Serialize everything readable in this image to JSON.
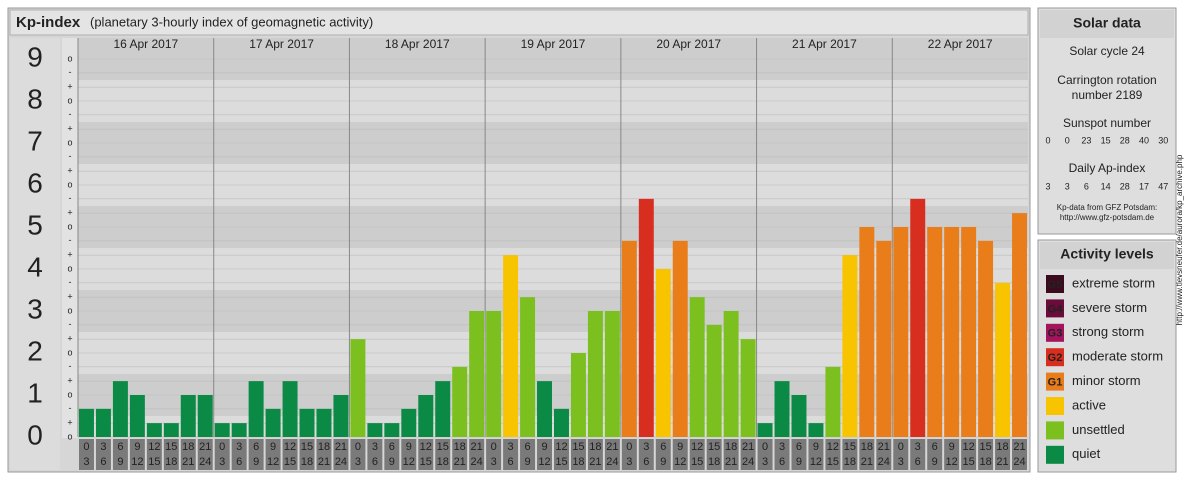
{
  "title": "Kp-index",
  "subtitle": "(planetary 3-hourly index of geomagnetic activity)",
  "chart_data": {
    "type": "bar",
    "days": [
      "16 Apr 2017",
      "17 Apr 2017",
      "18 Apr 2017",
      "19 Apr 2017",
      "20 Apr 2017",
      "21 Apr 2017",
      "22 Apr 2017"
    ],
    "intervals": [
      [
        "0",
        "3"
      ],
      [
        "3",
        "6"
      ],
      [
        "6",
        "9"
      ],
      [
        "9",
        "12"
      ],
      [
        "12",
        "15"
      ],
      [
        "15",
        "18"
      ],
      [
        "18",
        "21"
      ],
      [
        "21",
        "24"
      ]
    ],
    "values": [
      0.67,
      0.67,
      1.33,
      1,
      0.33,
      0.33,
      1,
      1,
      0.33,
      0.33,
      1.33,
      0.67,
      1.33,
      0.67,
      0.67,
      1,
      2.33,
      0.33,
      0.33,
      0.67,
      1,
      1.33,
      1.67,
      3,
      3,
      4.33,
      3.33,
      1.33,
      0.67,
      2,
      3,
      3,
      4.67,
      5.67,
      4,
      4.67,
      3.33,
      2.67,
      3,
      2.33,
      0.33,
      1.33,
      1,
      0.33,
      1.67,
      4.33,
      5,
      4.67,
      5,
      5.67,
      5,
      5,
      5,
      4.67,
      3.67,
      5.33
    ],
    "colors": [
      "#0a8a44",
      "#0a8a44",
      "#0a8a44",
      "#0a8a44",
      "#0a8a44",
      "#0a8a44",
      "#0a8a44",
      "#0a8a44",
      "#0a8a44",
      "#0a8a44",
      "#0a8a44",
      "#0a8a44",
      "#0a8a44",
      "#0a8a44",
      "#0a8a44",
      "#0a8a44",
      "#7cc020",
      "#0a8a44",
      "#0a8a44",
      "#0a8a44",
      "#0a8a44",
      "#0a8a44",
      "#7cc020",
      "#7cc020",
      "#7cc020",
      "#f8c400",
      "#7cc020",
      "#0a8a44",
      "#0a8a44",
      "#7cc020",
      "#7cc020",
      "#7cc020",
      "#e87d1a",
      "#d82e20",
      "#f8c400",
      "#e87d1a",
      "#7cc020",
      "#7cc020",
      "#7cc020",
      "#7cc020",
      "#0a8a44",
      "#0a8a44",
      "#0a8a44",
      "#0a8a44",
      "#7cc020",
      "#f8c400",
      "#e87d1a",
      "#e87d1a",
      "#e87d1a",
      "#d82e20",
      "#e87d1a",
      "#e87d1a",
      "#e87d1a",
      "#e87d1a",
      "#f8c400",
      "#e87d1a"
    ],
    "ylim": [
      0,
      9.5
    ],
    "yticks": [
      0,
      1,
      2,
      3,
      4,
      5,
      6,
      7,
      8,
      9
    ],
    "minor_ticks": [
      {
        "value": 0,
        "label": "o"
      },
      {
        "value": 0.33,
        "label": "+"
      },
      {
        "value": 0.67,
        "label": "-"
      },
      {
        "value": 1,
        "label": "o"
      },
      {
        "value": 1.33,
        "label": "+"
      },
      {
        "value": 1.67,
        "label": "-"
      },
      {
        "value": 2,
        "label": "o"
      },
      {
        "value": 2.33,
        "label": "+"
      },
      {
        "value": 2.67,
        "label": "-"
      },
      {
        "value": 3,
        "label": "o"
      },
      {
        "value": 3.33,
        "label": "+"
      },
      {
        "value": 3.67,
        "label": "-"
      },
      {
        "value": 4,
        "label": "o"
      },
      {
        "value": 4.33,
        "label": "+"
      },
      {
        "value": 4.67,
        "label": "-"
      },
      {
        "value": 5,
        "label": "o"
      },
      {
        "value": 5.33,
        "label": "+"
      },
      {
        "value": 5.67,
        "label": "-"
      },
      {
        "value": 6,
        "label": "o"
      },
      {
        "value": 6.33,
        "label": "+"
      },
      {
        "value": 6.67,
        "label": "-"
      },
      {
        "value": 7,
        "label": "o"
      },
      {
        "value": 7.33,
        "label": "+"
      },
      {
        "value": 7.67,
        "label": "-"
      },
      {
        "value": 8,
        "label": "o"
      },
      {
        "value": 8.33,
        "label": "+"
      },
      {
        "value": 8.67,
        "label": "-"
      },
      {
        "value": 9,
        "label": "o"
      }
    ],
    "grid": true
  },
  "solar_data": {
    "title": "Solar data",
    "cycle": "Solar cycle 24",
    "rotation": [
      "Carrington rotation",
      "number 2189"
    ],
    "sunspot_label": "Sunspot number",
    "sunspot_numbers": [
      0,
      0,
      23,
      15,
      28,
      40,
      30
    ],
    "ap_label": "Daily Ap-index",
    "ap_values": [
      3,
      3,
      6,
      14,
      28,
      17,
      47
    ],
    "source": [
      "Kp-data from GFZ Potsdam:",
      "http://www.gfz-potsdam.de"
    ]
  },
  "activity_levels": {
    "title": "Activity levels",
    "items": [
      {
        "badge": "G5",
        "label": "extreme storm",
        "color": "#3d0b1e"
      },
      {
        "badge": "G4",
        "label": "severe storm",
        "color": "#6a0b3a"
      },
      {
        "badge": "G3",
        "label": "strong storm",
        "color": "#a3145c"
      },
      {
        "badge": "G2",
        "label": "moderate storm",
        "color": "#d82e20"
      },
      {
        "badge": "G1",
        "label": "minor storm",
        "color": "#e87d1a"
      },
      {
        "label": "active",
        "color": "#f8c400"
      },
      {
        "label": "unsettled",
        "color": "#7cc020"
      },
      {
        "label": "quiet",
        "color": "#0a8a44"
      }
    ]
  },
  "credit": "http://www.tlevsneufer.de/aurora/kp_archive.php"
}
